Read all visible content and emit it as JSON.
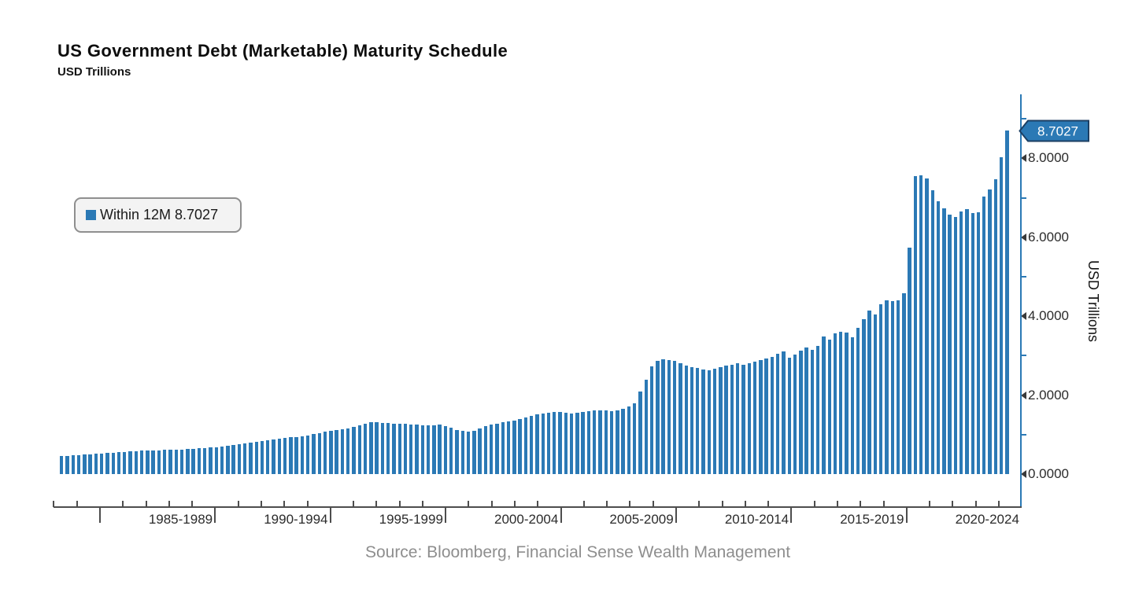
{
  "header": {
    "title": "US Government Debt (Marketable) Maturity Schedule",
    "subtitle": "USD Trillions"
  },
  "legend": {
    "text": "Within 12M 8.7027",
    "swatch_color": "#2b79b5"
  },
  "callout": {
    "value": "8.7027",
    "fill_color": "#2b79b5",
    "border_color": "#1c3f63"
  },
  "y_axis": {
    "title": "USD Trillions",
    "tick_labels": [
      "0.0000",
      "2.0000",
      "4.0000",
      "6.0000",
      "8.0000"
    ]
  },
  "x_axis": {
    "group_labels": [
      "1985-1989",
      "1990-1994",
      "1995-1999",
      "2000-2004",
      "2005-2009",
      "2010-2014",
      "2015-2019",
      "2020-2024"
    ]
  },
  "source": {
    "text": "Source: Bloomberg, Financial Sense Wealth Management"
  },
  "colors": {
    "bar": "#2b79b5",
    "y_axis_line": "#2b79b5",
    "x_axis_line": "#4d4d4d",
    "tick_text": "#2b2b2b",
    "source_text": "#8e8e8e"
  },
  "chart_data": {
    "type": "bar",
    "title": "US Government Debt (Marketable) Maturity Schedule",
    "ylabel": "USD Trillions",
    "ylim": [
      0,
      9.6
    ],
    "grid": false,
    "legend_position": "upper-left",
    "y_major_ticks": [
      0,
      2,
      4,
      6,
      8
    ],
    "y_minor_ticks": [
      1,
      3,
      5,
      7,
      9
    ],
    "frequency": "quarterly",
    "x_start": "1983 Q2",
    "x_end": "2024 Q3",
    "series": [
      {
        "name": "Within 12M",
        "latest_value": 8.7027,
        "values": [
          0.45,
          0.46,
          0.47,
          0.48,
          0.49,
          0.5,
          0.51,
          0.52,
          0.53,
          0.54,
          0.55,
          0.56,
          0.57,
          0.58,
          0.59,
          0.59,
          0.6,
          0.6,
          0.61,
          0.61,
          0.62,
          0.62,
          0.63,
          0.64,
          0.65,
          0.66,
          0.67,
          0.68,
          0.7,
          0.72,
          0.74,
          0.76,
          0.78,
          0.8,
          0.82,
          0.84,
          0.86,
          0.88,
          0.9,
          0.91,
          0.93,
          0.94,
          0.96,
          0.98,
          1.01,
          1.04,
          1.07,
          1.1,
          1.12,
          1.14,
          1.16,
          1.2,
          1.24,
          1.28,
          1.31,
          1.32,
          1.3,
          1.29,
          1.28,
          1.28,
          1.27,
          1.26,
          1.25,
          1.24,
          1.23,
          1.24,
          1.25,
          1.22,
          1.17,
          1.12,
          1.09,
          1.07,
          1.1,
          1.16,
          1.22,
          1.25,
          1.28,
          1.31,
          1.33,
          1.36,
          1.4,
          1.44,
          1.48,
          1.51,
          1.54,
          1.56,
          1.58,
          1.57,
          1.55,
          1.54,
          1.55,
          1.57,
          1.59,
          1.61,
          1.62,
          1.61,
          1.6,
          1.62,
          1.65,
          1.71,
          1.8,
          2.1,
          2.4,
          2.72,
          2.86,
          2.9,
          2.88,
          2.86,
          2.8,
          2.74,
          2.7,
          2.68,
          2.64,
          2.62,
          2.66,
          2.7,
          2.74,
          2.77,
          2.8,
          2.77,
          2.81,
          2.84,
          2.88,
          2.92,
          2.97,
          3.05,
          3.1,
          2.94,
          3.03,
          3.12,
          3.2,
          3.15,
          3.25,
          3.49,
          3.4,
          3.57,
          3.6,
          3.58,
          3.47,
          3.7,
          3.93,
          4.15,
          4.05,
          4.3,
          4.4,
          4.38,
          4.41,
          4.58,
          5.73,
          7.55,
          7.57,
          7.49,
          7.19,
          6.92,
          6.74,
          6.58,
          6.51,
          6.66,
          6.71,
          6.62,
          6.64,
          7.03,
          7.21,
          7.47,
          8.03,
          8.7027
        ]
      }
    ]
  }
}
